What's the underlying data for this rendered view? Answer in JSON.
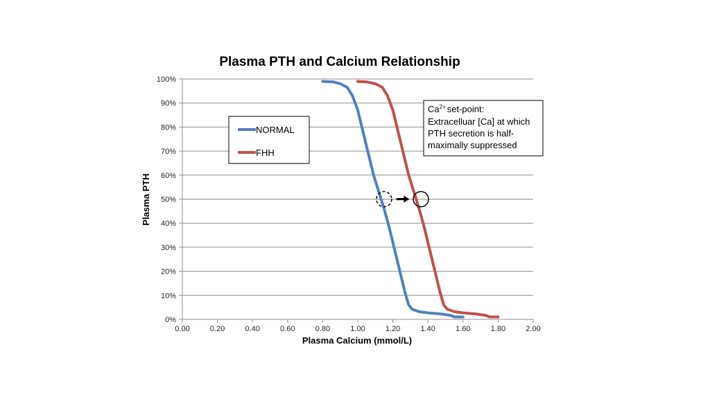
{
  "chart_data": {
    "type": "line",
    "title": "Plasma PTH and Calcium Relationship",
    "xlabel": "Plasma Calcium (mmol/L)",
    "ylabel": "Plasma PTH",
    "xlim": [
      0,
      2.0
    ],
    "ylim": [
      0,
      100
    ],
    "x_ticks": [
      "0.00",
      "0.20",
      "0.40",
      "0.60",
      "0.80",
      "1.00",
      "1.20",
      "1.40",
      "1.60",
      "1.80",
      "2.00"
    ],
    "y_ticks": [
      "0%",
      "10%",
      "20%",
      "30%",
      "40%",
      "50%",
      "60%",
      "70%",
      "80%",
      "90%",
      "100%"
    ],
    "grid": true,
    "legend_position": "upper-left",
    "series": [
      {
        "name": "NORMAL",
        "color": "#4f81bd",
        "points": [
          [
            0.8,
            99
          ],
          [
            0.86,
            98.8
          ],
          [
            0.9,
            98
          ],
          [
            0.94,
            96.5
          ],
          [
            0.97,
            93
          ],
          [
            1.0,
            87
          ],
          [
            1.03,
            78
          ],
          [
            1.06,
            69
          ],
          [
            1.09,
            60
          ],
          [
            1.12,
            53
          ],
          [
            1.15,
            46
          ],
          [
            1.18,
            38
          ],
          [
            1.21,
            29
          ],
          [
            1.24,
            20
          ],
          [
            1.27,
            11
          ],
          [
            1.29,
            6
          ],
          [
            1.31,
            4.2
          ],
          [
            1.35,
            3.2
          ],
          [
            1.4,
            2.7
          ],
          [
            1.48,
            2.2
          ],
          [
            1.53,
            1.6
          ],
          [
            1.55,
            1
          ],
          [
            1.6,
            1
          ]
        ]
      },
      {
        "name": "FHH",
        "color": "#c0504d",
        "points": [
          [
            1.0,
            99
          ],
          [
            1.05,
            98.8
          ],
          [
            1.1,
            98
          ],
          [
            1.14,
            96.5
          ],
          [
            1.17,
            93
          ],
          [
            1.2,
            87
          ],
          [
            1.23,
            78
          ],
          [
            1.26,
            69
          ],
          [
            1.29,
            60
          ],
          [
            1.32,
            53
          ],
          [
            1.35,
            46
          ],
          [
            1.38,
            38
          ],
          [
            1.41,
            29
          ],
          [
            1.44,
            20
          ],
          [
            1.47,
            11
          ],
          [
            1.49,
            6
          ],
          [
            1.51,
            4.2
          ],
          [
            1.55,
            3.2
          ],
          [
            1.6,
            2.7
          ],
          [
            1.68,
            2.2
          ],
          [
            1.73,
            1.6
          ],
          [
            1.75,
            1
          ],
          [
            1.8,
            1
          ]
        ]
      }
    ],
    "annotations": [
      {
        "text_lines": [
          "set-point:",
          "Extracelluar [Ca] at which",
          "PTH secretion is half-",
          "maximally suppressed"
        ],
        "superscript_prefix": "Ca",
        "superscript": "2+"
      }
    ],
    "markers": [
      {
        "kind": "dashed-circle",
        "x": 1.15,
        "y": 50
      },
      {
        "kind": "solid-circle",
        "x": 1.36,
        "y": 50
      },
      {
        "kind": "arrow",
        "from_x": 1.22,
        "to_x": 1.29,
        "y": 50
      }
    ]
  }
}
